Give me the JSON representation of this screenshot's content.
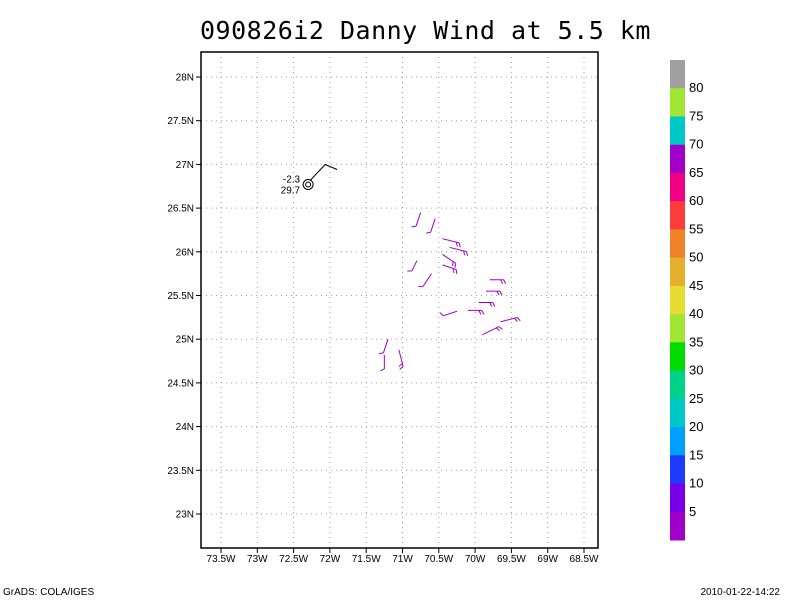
{
  "chart_data": {
    "type": "scatter",
    "title": "090826i2 Danny Wind at 5.5 km",
    "x_ticks": [
      "73.5W",
      "73W",
      "72.5W",
      "72W",
      "71.5W",
      "71W",
      "70.5W",
      "70W",
      "69.5W",
      "69W",
      "68.5W"
    ],
    "y_ticks": [
      "28N",
      "27.5N",
      "27N",
      "26.5N",
      "26N",
      "25.5N",
      "25N",
      "24.5N",
      "24N",
      "23.5N",
      "23N"
    ],
    "xlim": [
      -73.5,
      -68.5
    ],
    "ylim": [
      22.64,
      28.25
    ],
    "grid": true,
    "center": {
      "lon": -72.3,
      "lat": 26.77,
      "label_top": "-2.3",
      "label_bottom": "29.7"
    },
    "barbs": [
      {
        "lon": -70.75,
        "lat": 26.45,
        "u": -1,
        "v": -3,
        "flags": 1
      },
      {
        "lon": -70.55,
        "lat": 26.38,
        "u": -1,
        "v": -3,
        "flags": 1
      },
      {
        "lon": -70.45,
        "lat": 26.15,
        "u": 4,
        "v": -1,
        "flags": 2
      },
      {
        "lon": -70.35,
        "lat": 26.05,
        "u": 4,
        "v": -1,
        "flags": 2
      },
      {
        "lon": -70.45,
        "lat": 25.97,
        "u": 3,
        "v": -2,
        "flags": 2
      },
      {
        "lon": -70.8,
        "lat": 25.9,
        "u": -1,
        "v": -2,
        "flags": 1
      },
      {
        "lon": -70.45,
        "lat": 25.85,
        "u": 3,
        "v": -1,
        "flags": 2
      },
      {
        "lon": -70.6,
        "lat": 25.75,
        "u": -2,
        "v": -3,
        "flags": 1
      },
      {
        "lon": -69.8,
        "lat": 25.68,
        "u": 3,
        "v": 0,
        "flags": 2
      },
      {
        "lon": -69.85,
        "lat": 25.55,
        "u": 3,
        "v": 0,
        "flags": 2
      },
      {
        "lon": -69.95,
        "lat": 25.42,
        "u": 3,
        "v": 0,
        "flags": 2
      },
      {
        "lon": -70.25,
        "lat": 25.32,
        "u": -3,
        "v": -1,
        "flags": 1
      },
      {
        "lon": -70.1,
        "lat": 25.33,
        "u": 3,
        "v": 0,
        "flags": 2
      },
      {
        "lon": -69.9,
        "lat": 25.05,
        "u": 4,
        "v": 2,
        "flags": 2
      },
      {
        "lon": -69.65,
        "lat": 25.2,
        "u": 4,
        "v": 1,
        "flags": 2
      },
      {
        "lon": -71.2,
        "lat": 25.0,
        "u": -1,
        "v": -3,
        "flags": 1
      },
      {
        "lon": -71.05,
        "lat": 24.88,
        "u": 1,
        "v": -4,
        "flags": 2
      },
      {
        "lon": -71.25,
        "lat": 24.82,
        "u": 0,
        "v": -3,
        "flags": 1
      }
    ],
    "colorbar": {
      "labels": [
        "80",
        "75",
        "70",
        "65",
        "60",
        "55",
        "50",
        "45",
        "40",
        "35",
        "30",
        "25",
        "20",
        "15",
        "10",
        "5"
      ],
      "colors": [
        "#a0a0a0",
        "#a0e632",
        "#00c8c8",
        "#a000c8",
        "#f00082",
        "#fa3c3c",
        "#f08228",
        "#e6af2d",
        "#e6dc32",
        "#a0e632",
        "#00dc00",
        "#00d28c",
        "#00c8c8",
        "#00a0ff",
        "#1e3cff",
        "#7800e6",
        "#a000c8"
      ]
    }
  },
  "footer": {
    "left": "GrADS: COLA/IGES",
    "right": "2010-01-22-14:22"
  },
  "colors": {
    "barb": "#a000c8",
    "axis": "#000000",
    "grid": "#a0a0a0"
  }
}
